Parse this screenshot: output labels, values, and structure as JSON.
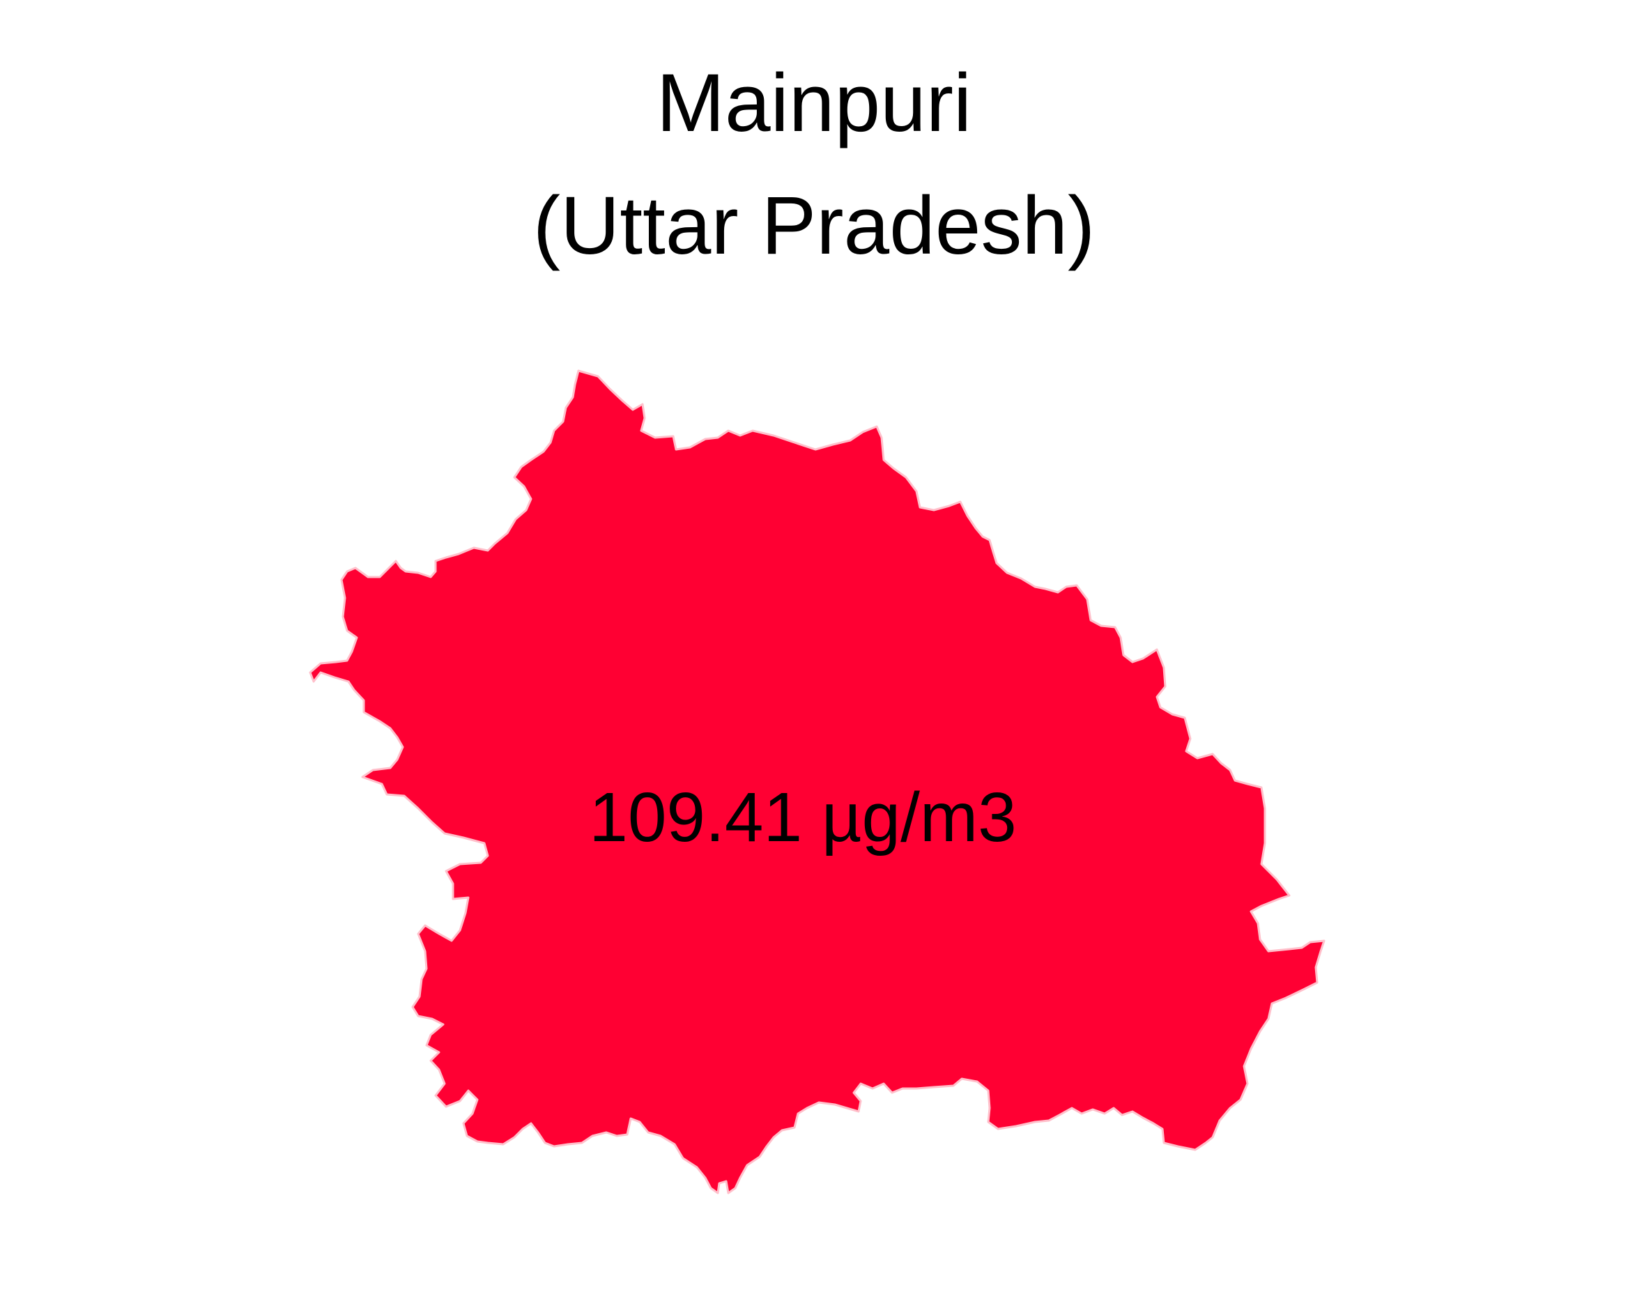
{
  "title": {
    "district": "Mainpuri",
    "state": "(Uttar Pradesh)"
  },
  "map": {
    "region_name": "Mainpuri",
    "value_label": "109.41 µg/m3",
    "fill_color": "#FF0033",
    "border_color": "#FFC0CB",
    "background_color": "#FFFFFF"
  }
}
